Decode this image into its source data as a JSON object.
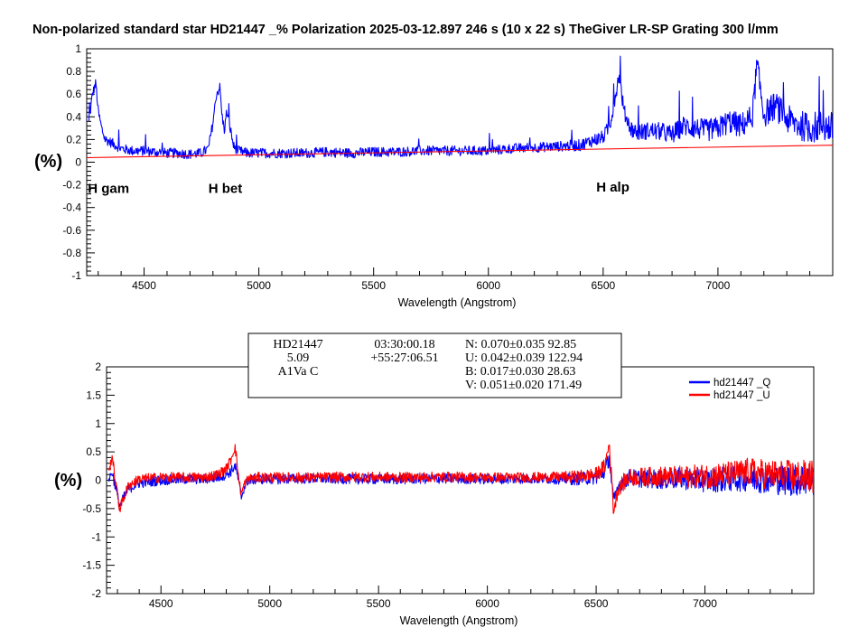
{
  "title": "Non-polarized standard star HD21447  _% Polarization  2025-03-12.897  246 s (10 x 22 s)  TheGiver LR-SP Grating 300 l/mm",
  "colors": {
    "blue": "#0000ff",
    "red": "#ff0000",
    "axis": "#000000",
    "background": "#ffffff"
  },
  "chart_data": [
    {
      "type": "line",
      "title": "",
      "xlabel": "Wavelength (Angstrom)",
      "ylabel": "(%)",
      "xlim": [
        4250,
        7500
      ],
      "ylim": [
        -1,
        1
      ],
      "xticks": [
        4500,
        5000,
        5500,
        6000,
        6500,
        7000
      ],
      "yticks": [
        -1,
        -0.8,
        -0.6,
        -0.4,
        -0.2,
        0,
        0.2,
        0.4,
        0.6,
        0.8,
        1
      ],
      "ytick_labels": [
        "-1",
        "-0.8",
        "-0.6",
        "-0.4",
        "-0.2",
        "0",
        "0.2",
        "0.4",
        "0.6",
        "0.8",
        "1"
      ],
      "grid": false,
      "annotations": [
        {
          "text": "H gam",
          "x": 4255,
          "y": -0.27
        },
        {
          "text": "H bet",
          "x": 4780,
          "y": -0.27
        },
        {
          "text": "H alp",
          "x": 6470,
          "y": -0.26
        }
      ],
      "series": [
        {
          "color": "#0000ff",
          "x": [
            4260,
            4275,
            4290,
            4300,
            4315,
            4330,
            4350,
            4400,
            4450,
            4500,
            4550,
            4600,
            4650,
            4700,
            4750,
            4780,
            4800,
            4815,
            4830,
            4840,
            4850,
            4860,
            4875,
            4890,
            4910,
            4950,
            5000,
            5100,
            5200,
            5300,
            5400,
            5500,
            5600,
            5700,
            5800,
            5850,
            5900,
            6000,
            6100,
            6200,
            6300,
            6400,
            6450,
            6500,
            6530,
            6550,
            6570,
            6590,
            6620,
            6650,
            6700,
            6750,
            6800,
            6850,
            6900,
            6950,
            7000,
            7050,
            7100,
            7150,
            7170,
            7200,
            7250,
            7300,
            7350,
            7400,
            7450,
            7500
          ],
          "y": [
            0.35,
            0.6,
            0.7,
            0.45,
            0.3,
            0.2,
            0.18,
            0.12,
            0.1,
            0.1,
            0.09,
            0.08,
            0.08,
            0.07,
            0.08,
            0.12,
            0.35,
            0.6,
            0.66,
            0.4,
            0.28,
            0.45,
            0.3,
            0.14,
            0.1,
            0.08,
            0.08,
            0.08,
            0.08,
            0.09,
            0.08,
            0.09,
            0.09,
            0.1,
            0.1,
            0.1,
            0.1,
            0.1,
            0.12,
            0.13,
            0.14,
            0.15,
            0.19,
            0.22,
            0.33,
            0.55,
            0.78,
            0.45,
            0.3,
            0.26,
            0.28,
            0.27,
            0.24,
            0.32,
            0.3,
            0.28,
            0.3,
            0.36,
            0.32,
            0.4,
            0.86,
            0.42,
            0.5,
            0.38,
            0.33,
            0.3,
            0.32,
            0.3
          ]
        },
        {
          "color": "#ff0000",
          "x": [
            4250,
            7500
          ],
          "y": [
            0.04,
            0.15
          ]
        }
      ]
    },
    {
      "type": "line",
      "title": "",
      "xlabel": "Wavelength (Angstrom)",
      "ylabel": "(%)",
      "xlim": [
        4250,
        7500
      ],
      "ylim": [
        -2,
        2
      ],
      "xticks": [
        4500,
        5000,
        5500,
        6000,
        6500,
        7000
      ],
      "yticks": [
        -2,
        -1.5,
        -1,
        -0.5,
        0,
        0.5,
        1,
        1.5,
        2
      ],
      "ytick_labels": [
        "-2",
        "-1.5",
        "-1",
        "-0.5",
        "0",
        "0.5",
        "1",
        "1.5",
        "2"
      ],
      "grid": false,
      "legend": "top-right",
      "series": [
        {
          "name": "hd21447  _Q",
          "color": "#0000ff",
          "x": [
            4260,
            4275,
            4290,
            4310,
            4330,
            4350,
            4400,
            4500,
            4600,
            4700,
            4760,
            4800,
            4820,
            4840,
            4850,
            4860,
            4870,
            4880,
            4900,
            4950,
            5000,
            5200,
            5400,
            5600,
            5800,
            6000,
            6200,
            6400,
            6500,
            6540,
            6560,
            6570,
            6580,
            6600,
            6650,
            6700,
            6800,
            6900,
            7000,
            7100,
            7200,
            7300,
            7400,
            7500
          ],
          "y": [
            0.0,
            0.15,
            -0.1,
            -0.45,
            -0.3,
            -0.15,
            -0.05,
            0.0,
            0.02,
            0.02,
            0.05,
            0.1,
            0.15,
            0.25,
            0.12,
            -0.1,
            -0.3,
            -0.15,
            0.0,
            0.02,
            0.02,
            0.03,
            0.02,
            0.02,
            0.03,
            0.02,
            0.03,
            0.02,
            0.05,
            0.15,
            0.4,
            0.0,
            -0.4,
            -0.1,
            0.05,
            0.03,
            0.02,
            0.03,
            0.0,
            0.02,
            0.05,
            0.02,
            0.0,
            0.02
          ]
        },
        {
          "name": "hd21447  _U",
          "color": "#ff0000",
          "x": [
            4260,
            4275,
            4290,
            4310,
            4330,
            4350,
            4400,
            4500,
            4600,
            4700,
            4760,
            4800,
            4820,
            4840,
            4850,
            4860,
            4870,
            4880,
            4900,
            4950,
            5000,
            5200,
            5400,
            5600,
            5800,
            6000,
            6200,
            6400,
            6500,
            6540,
            6560,
            6570,
            6580,
            6600,
            6650,
            6700,
            6800,
            6900,
            7000,
            7100,
            7200,
            7300,
            7400,
            7500
          ],
          "y": [
            0.1,
            0.45,
            0.0,
            -0.5,
            -0.3,
            -0.1,
            0.02,
            0.05,
            0.05,
            0.05,
            0.1,
            0.2,
            0.35,
            0.6,
            0.3,
            -0.05,
            -0.25,
            -0.1,
            0.02,
            0.05,
            0.05,
            0.05,
            0.06,
            0.05,
            0.06,
            0.05,
            0.05,
            0.06,
            0.1,
            0.25,
            0.65,
            0.1,
            -0.55,
            -0.15,
            0.05,
            0.06,
            0.07,
            0.06,
            0.08,
            0.1,
            0.15,
            0.1,
            0.08,
            0.06
          ]
        }
      ]
    }
  ],
  "info_box": {
    "col1": [
      "HD21447",
      "5.09",
      "A1Va C"
    ],
    "col2": [
      "03:30:00.18",
      "+55:27:06.51"
    ],
    "col3": [
      "N: 0.070±0.035  92.85",
      "U: 0.042±0.039  122.94",
      "B: 0.017±0.030  28.63",
      "V: 0.051±0.020  171.49"
    ]
  }
}
